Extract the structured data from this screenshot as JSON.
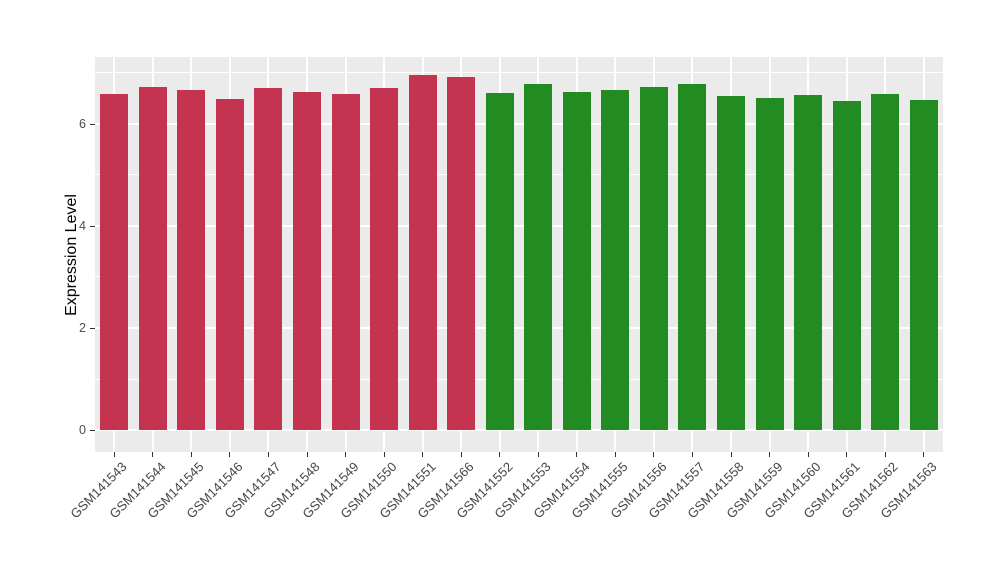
{
  "figure": {
    "background": "#FFFFFF"
  },
  "chart_data": {
    "type": "bar",
    "title": "",
    "xlabel": "",
    "ylabel": "Expression Level",
    "ylim": [
      -0.43,
      7.31
    ],
    "yticks": [
      0,
      2,
      4,
      6
    ],
    "minor_gridlines": [
      1,
      3,
      5,
      7
    ],
    "grid": true,
    "legend": "none",
    "panel_bg": "#EBEBEB",
    "grid_color": "#FFFFFF",
    "tick_color": "#333333",
    "axis_text_color": "#4D4D4D",
    "x_tick_angle": 45,
    "group_colors": {
      "group1": "#C4334F",
      "group2": "#228B22"
    },
    "bars": [
      {
        "label": "GSM141543",
        "value": 6.59,
        "group": "group1"
      },
      {
        "label": "GSM141544",
        "value": 6.73,
        "group": "group1"
      },
      {
        "label": "GSM141545",
        "value": 6.67,
        "group": "group1"
      },
      {
        "label": "GSM141546",
        "value": 6.48,
        "group": "group1"
      },
      {
        "label": "GSM141547",
        "value": 6.7,
        "group": "group1"
      },
      {
        "label": "GSM141548",
        "value": 6.63,
        "group": "group1"
      },
      {
        "label": "GSM141549",
        "value": 6.58,
        "group": "group1"
      },
      {
        "label": "GSM141550",
        "value": 6.71,
        "group": "group1"
      },
      {
        "label": "GSM141551",
        "value": 6.95,
        "group": "group1"
      },
      {
        "label": "GSM141566",
        "value": 6.92,
        "group": "group1"
      },
      {
        "label": "GSM141552",
        "value": 6.61,
        "group": "group2"
      },
      {
        "label": "GSM141553",
        "value": 6.79,
        "group": "group2"
      },
      {
        "label": "GSM141554",
        "value": 6.63,
        "group": "group2"
      },
      {
        "label": "GSM141555",
        "value": 6.67,
        "group": "group2"
      },
      {
        "label": "GSM141556",
        "value": 6.72,
        "group": "group2"
      },
      {
        "label": "GSM141557",
        "value": 6.78,
        "group": "group2"
      },
      {
        "label": "GSM141558",
        "value": 6.55,
        "group": "group2"
      },
      {
        "label": "GSM141559",
        "value": 6.51,
        "group": "group2"
      },
      {
        "label": "GSM141560",
        "value": 6.57,
        "group": "group2"
      },
      {
        "label": "GSM141561",
        "value": 6.45,
        "group": "group2"
      },
      {
        "label": "GSM141562",
        "value": 6.58,
        "group": "group2"
      },
      {
        "label": "GSM141563",
        "value": 6.46,
        "group": "group2"
      }
    ]
  }
}
